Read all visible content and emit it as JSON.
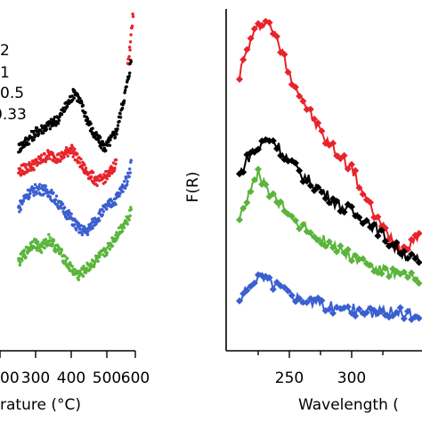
{
  "chart_data": [
    {
      "type": "scatter",
      "title": "",
      "xlabel": "rature (°C)",
      "ylabel": "",
      "xticks": [
        "00",
        "300",
        "400",
        "500",
        "600"
      ],
      "xlim": [
        180,
        610
      ],
      "ylim": [
        0,
        100
      ],
      "legend_entries": [
        "2",
        "1",
        "0.5",
        "0.33"
      ],
      "series_colors": [
        "#000000",
        "#e8232a",
        "#3a5fd0",
        "#5ab53a"
      ],
      "series": [
        {
          "color": "#e8232a",
          "x": [
            590,
            595,
            600,
            605
          ],
          "y": [
            82,
            87,
            94,
            98
          ]
        },
        {
          "color": "#000000",
          "x": [
            300,
            350,
            400,
            430,
            450,
            470,
            500,
            530,
            560,
            590,
            600
          ],
          "y": [
            58,
            63,
            66,
            71,
            75,
            70,
            62,
            58,
            63,
            78,
            85
          ]
        },
        {
          "color": "#e8232a",
          "x": [
            300,
            340,
            380,
            410,
            440,
            460,
            480,
            510,
            540,
            560
          ],
          "y": [
            51,
            53,
            56,
            55,
            58,
            54,
            51,
            48,
            50,
            54
          ]
        },
        {
          "color": "#3a5fd0",
          "x": [
            300,
            320,
            350,
            380,
            410,
            440,
            460,
            480,
            500,
            530,
            560,
            590,
            600
          ],
          "y": [
            40,
            44,
            46,
            45,
            41,
            37,
            34,
            33,
            36,
            40,
            43,
            49,
            54
          ]
        },
        {
          "color": "#5ab53a",
          "x": [
            300,
            320,
            340,
            360,
            380,
            410,
            440,
            460,
            480,
            500,
            530,
            560,
            590,
            600
          ],
          "y": [
            24,
            27,
            30,
            28,
            31,
            27,
            22,
            20,
            22,
            24,
            27,
            32,
            37,
            40
          ]
        }
      ]
    },
    {
      "type": "line",
      "title": "",
      "xlabel": "Wavelength (",
      "ylabel": "F(R)",
      "xticks": [
        "250",
        "300"
      ],
      "xlim": [
        205,
        355
      ],
      "ylim": [
        0,
        100
      ],
      "series_colors": [
        "#e8232a",
        "#000000",
        "#5ab53a",
        "#3a5fd0"
      ],
      "series": [
        {
          "color": "#e8232a",
          "x": [
            210,
            215,
            220,
            225,
            230,
            235,
            240,
            245,
            250,
            260,
            270,
            280,
            290,
            300,
            310,
            320,
            330,
            340,
            350,
            355
          ],
          "y": [
            80,
            86,
            91,
            94,
            96,
            95,
            90,
            86,
            80,
            73,
            66,
            60,
            56,
            52,
            44,
            37,
            32,
            28,
            31,
            33
          ]
        },
        {
          "color": "#000000",
          "x": [
            210,
            215,
            220,
            225,
            230,
            235,
            240,
            250,
            260,
            270,
            280,
            290,
            300,
            310,
            320,
            330,
            340,
            350,
            355
          ],
          "y": [
            50,
            54,
            57,
            58,
            60,
            61,
            59,
            54,
            50,
            47,
            44,
            41,
            39,
            37,
            34,
            30,
            27,
            25,
            24
          ]
        },
        {
          "color": "#5ab53a",
          "x": [
            210,
            215,
            220,
            225,
            230,
            240,
            250,
            260,
            270,
            280,
            290,
            300,
            310,
            320,
            330,
            340,
            350,
            355
          ],
          "y": [
            38,
            42,
            46,
            50,
            47,
            42,
            38,
            35,
            32,
            30,
            28,
            26,
            24,
            22,
            21,
            20,
            19,
            18
          ]
        },
        {
          "color": "#3a5fd0",
          "x": [
            210,
            215,
            220,
            225,
            230,
            240,
            250,
            260,
            270,
            280,
            290,
            300,
            310,
            320,
            330,
            340,
            350,
            355
          ],
          "y": [
            12,
            15,
            18,
            20,
            19,
            17,
            15,
            13,
            12,
            11,
            10,
            10,
            9,
            9,
            9,
            9,
            8,
            8
          ]
        }
      ]
    }
  ]
}
